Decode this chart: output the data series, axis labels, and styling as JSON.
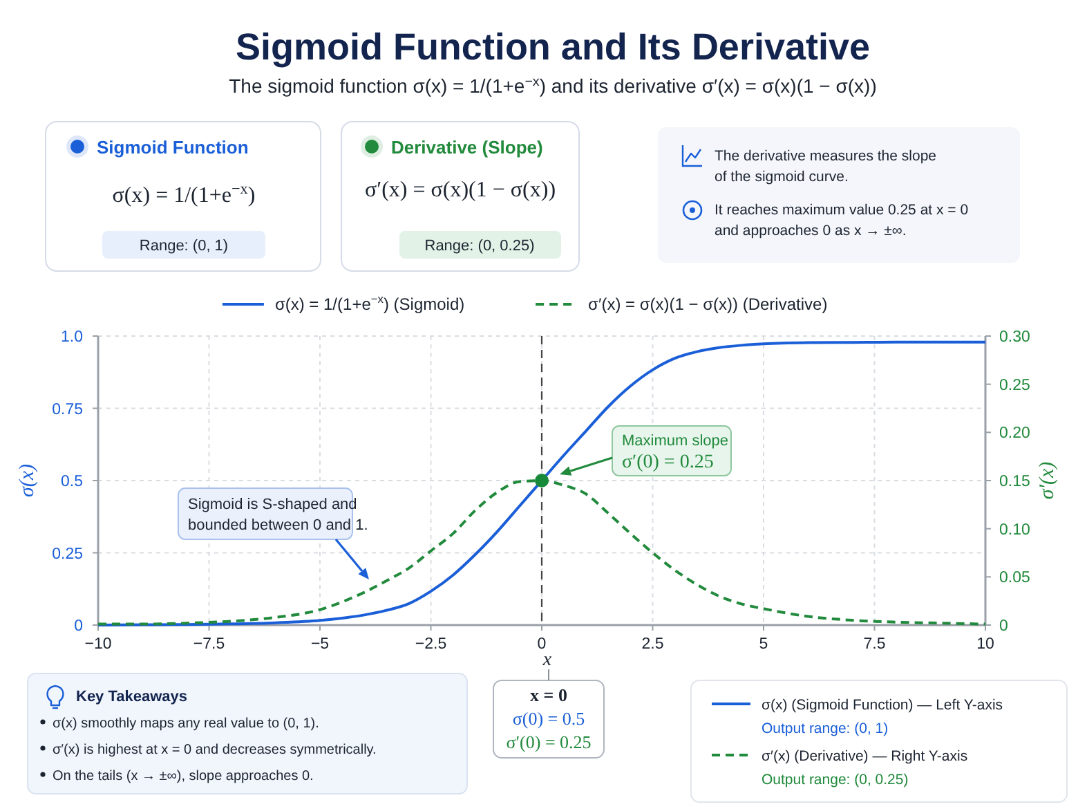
{
  "chart_data": {
    "type": "line",
    "title": "Sigmoid Function and Its Derivative",
    "subtitle": "The sigmoid function σ(x) = 1/(1+e$^{−x}$) and its derivative σ′(x) = σ(x)(1 − σ(x))",
    "xlabel": "x",
    "ylabel": "σ(x)",
    "y2label": "σ′(x)",
    "x": [
      -10,
      -9,
      -8,
      -7,
      -6,
      -5,
      -4.5,
      -4,
      -3.5,
      -3,
      -2.5,
      -2,
      -1.5,
      -1,
      -0.5,
      0,
      0.5,
      1,
      1.5,
      2,
      2.5,
      3,
      3.5,
      4,
      4.5,
      5,
      6,
      7,
      8,
      9,
      10
    ],
    "series": [
      {
        "name": "σ(x) = 1/(1+e$^{−x}$) (Sigmoid)",
        "color": "#1a5fd8",
        "line_style": "solid",
        "values": [
          0,
          0.001,
          0.002,
          0.004,
          0.008,
          0.016,
          0.024,
          0.035,
          0.051,
          0.074,
          0.117,
          0.173,
          0.244,
          0.324,
          0.412,
          0.5,
          0.588,
          0.672,
          0.756,
          0.827,
          0.883,
          0.923,
          0.946,
          0.96,
          0.968,
          0.973,
          0.977,
          0.978,
          0.979,
          0.979,
          0.979
        ]
      },
      {
        "name": "σ′(x) = σ(x)(1 − σ(x)) (Derivative)",
        "color": "#218a3c",
        "line_style": "dashed",
        "axis": "y2",
        "values": [
          0.001,
          0.001,
          0.002,
          0.004,
          0.008,
          0.016,
          0.024,
          0.034,
          0.046,
          0.059,
          0.077,
          0.095,
          0.119,
          0.138,
          0.149,
          0.15,
          0.145,
          0.136,
          0.116,
          0.095,
          0.075,
          0.057,
          0.042,
          0.03,
          0.022,
          0.017,
          0.009,
          0.005,
          0.003,
          0.002,
          0.001
        ]
      },
      {
        "type": "scatter",
        "color": "#178a3a",
        "marker": "circle",
        "x": [
          0
        ],
        "values": [
          0.5
        ]
      }
    ],
    "xlim": [
      -10,
      10
    ],
    "xticks": [
      {
        "value": -10,
        "label": "−10"
      },
      {
        "value": -7.5,
        "label": "−7.5"
      },
      {
        "value": -5,
        "label": "−5"
      },
      {
        "value": -2.5,
        "label": "−2.5"
      },
      0,
      2.5,
      5,
      7.5,
      10
    ],
    "ylim": [
      0,
      1
    ],
    "yticks": [
      0,
      0.25,
      0.5,
      0.75,
      {
        "value": 1,
        "label": "1.0"
      }
    ],
    "y2lim": [
      0,
      0.3
    ],
    "y2ticks": [
      0,
      0.05,
      {
        "value": 0.1,
        "label": "0.10"
      },
      0.15,
      {
        "value": 0.2,
        "label": "0.20"
      },
      0.25,
      {
        "value": 0.3,
        "label": "0.30"
      }
    ],
    "grid": true,
    "legend": "top",
    "ref_lines": [
      {
        "axis": "x",
        "value": 0,
        "color": "#444444",
        "line_style": "dashed"
      }
    ],
    "annotations": [
      "Sigmoid is S-shaped and bounded between 0 and 1.",
      "Maximum slope σ′(0) = 0.25",
      "x = 0",
      "σ(0) = 0.5",
      "σ′(0) = 0.25",
      "Sigmoid Function",
      "σ(x) = 1/(1+e$^{−x}$)",
      "Range: (0, 1)",
      "Derivative (Slope)",
      "σ′(x) = σ(x)(1 − σ(x))",
      "Range: (0, 0.25)",
      "The derivative measures the slope of the sigmoid curve.",
      "It reaches maximum value 0.25 at x = 0 and approaches 0 as x → ±∞.",
      "Key Takeaways",
      "σ(x) smoothly maps any real value to (0, 1).",
      "σ′(x) is highest at x = 0 and decreases symmetrically.",
      "On the tails (x → ±∞), slope approaches 0.",
      "σ(x) (Sigmoid Function) — Left Y-axis",
      "Output range: (0, 1)",
      "σ′(x) (Derivative) — Right Y-axis",
      "Output range: (0, 0.25)"
    ]
  }
}
